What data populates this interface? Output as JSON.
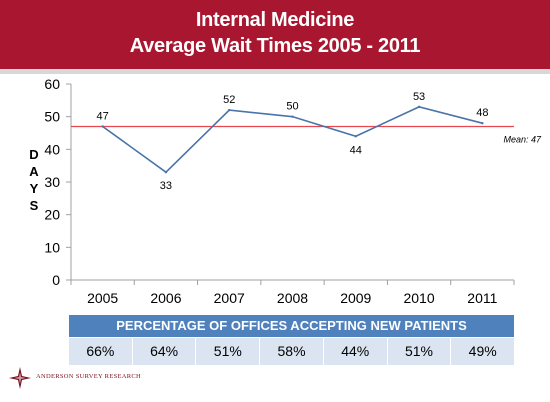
{
  "header": {
    "title_line1": "Internal Medicine",
    "title_line2": "Average Wait Times 2005 - 2011"
  },
  "chart_data": {
    "type": "line",
    "title": "Internal Medicine Average Wait Times 2005 - 2011",
    "ylabel": "DAYS",
    "xlabel": "",
    "categories": [
      "2005",
      "2006",
      "2007",
      "2008",
      "2009",
      "2010",
      "2011"
    ],
    "series": [
      {
        "values": [
          47,
          33,
          52,
          50,
          44,
          53,
          48
        ]
      }
    ],
    "data_labels": [
      "47",
      "33",
      "52",
      "50",
      "44",
      "53",
      "48"
    ],
    "ylim": [
      0,
      60
    ],
    "yticks": [
      0,
      10,
      20,
      30,
      40,
      50,
      60
    ],
    "mean_line": {
      "value": 47,
      "label": "Mean: 47"
    },
    "grid": false,
    "colors": {
      "line": "#4a74a8",
      "mean": "#e8474f"
    }
  },
  "table": {
    "header": "PERCENTAGE OF OFFICES ACCEPTING NEW  PATIENTS",
    "values": [
      "66%",
      "64%",
      "51%",
      "58%",
      "44%",
      "51%",
      "49%"
    ]
  },
  "footer": {
    "logo_text": "ANDERSON SURVEY RESEARCH",
    "logo_icon": "star-compass-icon"
  },
  "colors": {
    "header_bg": "#a8162f",
    "table_header_bg": "#4f81bd",
    "table_cell_bg": "#dbe5f1"
  }
}
